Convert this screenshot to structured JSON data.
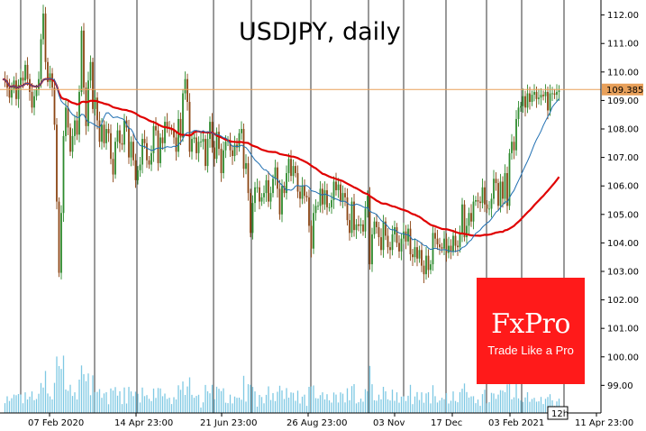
{
  "chart_data": {
    "type": "candlestick",
    "title": "USDJPY, daily",
    "x_tick_labels": [
      "07 Feb 2020",
      "14 Apr 23:00",
      "21 Jun 23:00",
      "26 Aug 23:00",
      "03 Nov",
      "17 Dec",
      "03 Feb 2021",
      "11 Apr 23:00"
    ],
    "y_tick_labels": [
      "112.00",
      "111.00",
      "110.00",
      "109.00",
      "108.00",
      "107.00",
      "106.00",
      "105.00",
      "104.00",
      "103.00",
      "102.00",
      "101.00",
      "100.00",
      "99.00"
    ],
    "ylim": [
      98.6,
      112.4
    ],
    "grid": "vertical",
    "current_price": {
      "value": 109.385,
      "label": "109.385",
      "color": "#e8a05a"
    },
    "timeframe_badge": "12h",
    "colors": {
      "up": "#2e8b2e",
      "down": "#8b4513",
      "ma_long": "#e00000",
      "ma_short": "#1f6fb2",
      "volume": "#7ec8e3",
      "grid": "#000000"
    },
    "candle_closes": [
      109.75,
      109.7,
      109.45,
      109.1,
      109.4,
      109.7,
      109.05,
      109.55,
      109.8,
      109.7,
      110.25,
      109.75,
      109.3,
      108.75,
      109.15,
      109.4,
      109.75,
      111.15,
      112.05,
      110.35,
      109.65,
      109.95,
      109.45,
      108.15,
      105.45,
      102.95,
      105.05,
      107.75,
      108.75,
      108.05,
      107.2,
      107.75,
      108.3,
      107.8,
      109.3,
      111.45,
      109.45,
      108.1,
      109.7,
      110.35,
      108.7,
      109.1,
      108.3,
      107.55,
      108.15,
      107.5,
      108.0,
      107.85,
      106.95,
      106.4,
      107.55,
      107.95,
      107.5,
      107.45,
      108.3,
      108.05,
      107.0,
      107.55,
      106.9,
      106.2,
      106.55,
      106.75,
      107.65,
      107.5,
      106.9,
      106.75,
      107.15,
      108.1,
      107.95,
      106.8,
      107.7,
      107.5,
      108.25,
      108.05,
      108.0,
      107.95,
      107.7,
      107.2,
      108.35,
      107.7,
      109.25,
      109.75,
      108.95,
      107.2,
      107.65,
      107.7,
      107.15,
      107.55,
      107.55,
      107.65,
      106.7,
      107.65,
      108.25,
      107.35,
      106.95,
      107.9,
      107.3,
      106.45,
      107.25,
      107.55,
      107.6,
      107.25,
      107.05,
      107.45,
      107.35,
      107.85,
      108.0,
      106.6,
      106.8,
      105.75,
      104.35,
      105.4,
      105.95,
      105.95,
      105.45,
      105.6,
      105.75,
      106.2,
      105.45,
      105.75,
      106.25,
      106.65,
      105.9,
      105.0,
      106.0,
      105.75,
      106.45,
      106.95,
      106.35,
      106.7,
      106.45,
      105.8,
      105.55,
      106.0,
      105.65,
      105.6,
      104.6,
      103.8,
      105.05,
      105.3,
      105.3,
      105.9,
      105.35,
      105.85,
      105.25,
      105.25,
      105.5,
      106.15,
      105.85,
      106.05,
      105.45,
      105.75,
      105.6,
      104.8,
      104.35,
      105.45,
      104.45,
      104.65,
      104.6,
      104.65,
      104.4,
      105.2,
      105.65,
      103.25,
      104.3,
      104.75,
      104.55,
      104.2,
      103.75,
      104.75,
      104.25,
      103.85,
      103.75,
      104.3,
      104.55,
      104.0,
      103.7,
      104.15,
      104.4,
      104.05,
      104.5,
      103.6,
      103.5,
      103.85,
      103.45,
      103.75,
      103.2,
      102.9,
      103.55,
      103.05,
      103.25,
      104.35,
      104.15,
      103.95,
      103.85,
      103.8,
      104.15,
      103.65,
      103.9,
      103.7,
      104.25,
      103.9,
      103.85,
      104.3,
      105.35,
      104.2,
      104.6,
      105.05,
      104.75,
      105.45,
      105.5,
      105.45,
      105.4,
      105.95,
      105.35,
      105.2,
      105.2,
      105.55,
      106.25,
      106.1,
      105.3,
      106.15,
      105.55,
      106.45,
      105.3,
      107.15,
      107.55,
      107.25,
      108.35,
      108.75,
      108.8,
      109.15,
      108.75,
      109.25,
      108.95,
      109.2,
      109.3,
      109.05,
      109.1,
      109.2,
      109.15,
      109.3,
      108.65,
      109.25,
      109.25,
      109.2,
      109.3,
      109.35
    ]
  },
  "logo": {
    "name": "FxPro",
    "tagline": "Trade Like a Pro"
  }
}
